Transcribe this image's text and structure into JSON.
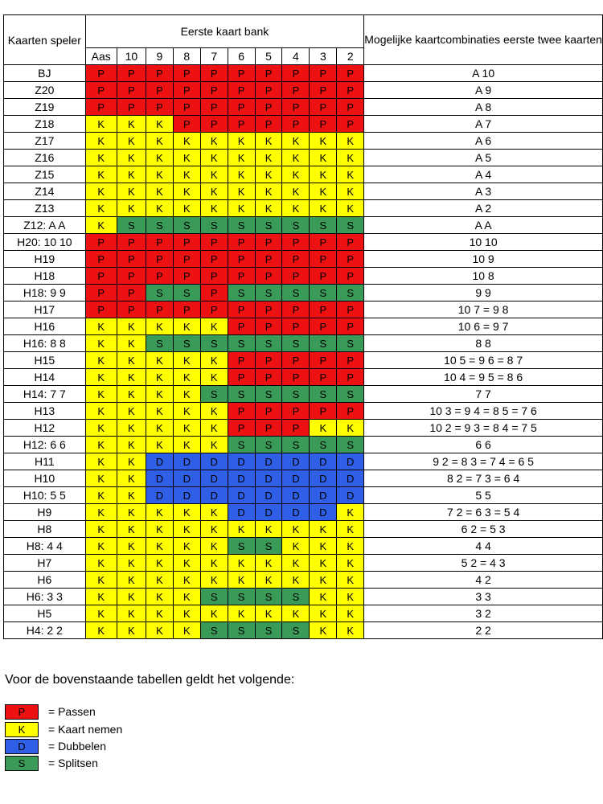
{
  "header": {
    "player_label": "Kaarten speler",
    "dealer_label": "Eerste kaart bank",
    "combos_label": "Mogelijke kaartcombinaties eerste twee kaarten",
    "dealer_cards": [
      "Aas",
      "10",
      "9",
      "8",
      "7",
      "6",
      "5",
      "4",
      "3",
      "2"
    ]
  },
  "rows": [
    {
      "label": "BJ",
      "actions": [
        "P",
        "P",
        "P",
        "P",
        "P",
        "P",
        "P",
        "P",
        "P",
        "P"
      ],
      "combos": "A 10"
    },
    {
      "label": "Z20",
      "actions": [
        "P",
        "P",
        "P",
        "P",
        "P",
        "P",
        "P",
        "P",
        "P",
        "P"
      ],
      "combos": "A 9"
    },
    {
      "label": "Z19",
      "actions": [
        "P",
        "P",
        "P",
        "P",
        "P",
        "P",
        "P",
        "P",
        "P",
        "P"
      ],
      "combos": "A 8"
    },
    {
      "label": "Z18",
      "actions": [
        "K",
        "K",
        "K",
        "P",
        "P",
        "P",
        "P",
        "P",
        "P",
        "P"
      ],
      "combos": "A 7"
    },
    {
      "label": "Z17",
      "actions": [
        "K",
        "K",
        "K",
        "K",
        "K",
        "K",
        "K",
        "K",
        "K",
        "K"
      ],
      "combos": "A 6"
    },
    {
      "label": "Z16",
      "actions": [
        "K",
        "K",
        "K",
        "K",
        "K",
        "K",
        "K",
        "K",
        "K",
        "K"
      ],
      "combos": "A 5"
    },
    {
      "label": "Z15",
      "actions": [
        "K",
        "K",
        "K",
        "K",
        "K",
        "K",
        "K",
        "K",
        "K",
        "K"
      ],
      "combos": "A 4"
    },
    {
      "label": "Z14",
      "actions": [
        "K",
        "K",
        "K",
        "K",
        "K",
        "K",
        "K",
        "K",
        "K",
        "K"
      ],
      "combos": "A 3"
    },
    {
      "label": "Z13",
      "actions": [
        "K",
        "K",
        "K",
        "K",
        "K",
        "K",
        "K",
        "K",
        "K",
        "K"
      ],
      "combos": "A 2"
    },
    {
      "label": "Z12: A A",
      "actions": [
        "K",
        "S",
        "S",
        "S",
        "S",
        "S",
        "S",
        "S",
        "S",
        "S"
      ],
      "combos": "A A"
    },
    {
      "label": "H20: 10 10",
      "actions": [
        "P",
        "P",
        "P",
        "P",
        "P",
        "P",
        "P",
        "P",
        "P",
        "P"
      ],
      "combos": "10 10"
    },
    {
      "label": "H19",
      "actions": [
        "P",
        "P",
        "P",
        "P",
        "P",
        "P",
        "P",
        "P",
        "P",
        "P"
      ],
      "combos": "10 9"
    },
    {
      "label": "H18",
      "actions": [
        "P",
        "P",
        "P",
        "P",
        "P",
        "P",
        "P",
        "P",
        "P",
        "P"
      ],
      "combos": "10 8"
    },
    {
      "label": "H18: 9 9",
      "actions": [
        "P",
        "P",
        "S",
        "S",
        "P",
        "S",
        "S",
        "S",
        "S",
        "S"
      ],
      "combos": "9 9"
    },
    {
      "label": "H17",
      "actions": [
        "P",
        "P",
        "P",
        "P",
        "P",
        "P",
        "P",
        "P",
        "P",
        "P"
      ],
      "combos": "10 7 = 9 8"
    },
    {
      "label": "H16",
      "actions": [
        "K",
        "K",
        "K",
        "K",
        "K",
        "P",
        "P",
        "P",
        "P",
        "P"
      ],
      "combos": "10 6 = 9 7"
    },
    {
      "label": "H16: 8 8",
      "actions": [
        "K",
        "K",
        "S",
        "S",
        "S",
        "S",
        "S",
        "S",
        "S",
        "S"
      ],
      "combos": "8 8"
    },
    {
      "label": "H15",
      "actions": [
        "K",
        "K",
        "K",
        "K",
        "K",
        "P",
        "P",
        "P",
        "P",
        "P"
      ],
      "combos": "10 5 = 9 6 = 8 7"
    },
    {
      "label": "H14",
      "actions": [
        "K",
        "K",
        "K",
        "K",
        "K",
        "P",
        "P",
        "P",
        "P",
        "P"
      ],
      "combos": "10 4 = 9 5 = 8 6"
    },
    {
      "label": "H14: 7 7",
      "actions": [
        "K",
        "K",
        "K",
        "K",
        "S",
        "S",
        "S",
        "S",
        "S",
        "S"
      ],
      "combos": "7 7"
    },
    {
      "label": "H13",
      "actions": [
        "K",
        "K",
        "K",
        "K",
        "K",
        "P",
        "P",
        "P",
        "P",
        "P"
      ],
      "combos": "10 3 = 9 4 = 8 5 = 7 6"
    },
    {
      "label": "H12",
      "actions": [
        "K",
        "K",
        "K",
        "K",
        "K",
        "P",
        "P",
        "P",
        "K",
        "K"
      ],
      "combos": "10 2 = 9 3 = 8 4 = 7 5"
    },
    {
      "label": "H12: 6 6",
      "actions": [
        "K",
        "K",
        "K",
        "K",
        "K",
        "S",
        "S",
        "S",
        "S",
        "S"
      ],
      "combos": "6 6"
    },
    {
      "label": "H11",
      "actions": [
        "K",
        "K",
        "D",
        "D",
        "D",
        "D",
        "D",
        "D",
        "D",
        "D"
      ],
      "combos": "9 2 = 8 3 = 7 4 = 6 5"
    },
    {
      "label": "H10",
      "actions": [
        "K",
        "K",
        "D",
        "D",
        "D",
        "D",
        "D",
        "D",
        "D",
        "D"
      ],
      "combos": "8 2 = 7 3 = 6 4"
    },
    {
      "label": "H10: 5 5",
      "actions": [
        "K",
        "K",
        "D",
        "D",
        "D",
        "D",
        "D",
        "D",
        "D",
        "D"
      ],
      "combos": "5 5"
    },
    {
      "label": "H9",
      "actions": [
        "K",
        "K",
        "K",
        "K",
        "K",
        "D",
        "D",
        "D",
        "D",
        "K"
      ],
      "combos": "7 2 = 6 3 = 5 4"
    },
    {
      "label": "H8",
      "actions": [
        "K",
        "K",
        "K",
        "K",
        "K",
        "K",
        "K",
        "K",
        "K",
        "K"
      ],
      "combos": "6 2 = 5 3"
    },
    {
      "label": "H8: 4 4",
      "actions": [
        "K",
        "K",
        "K",
        "K",
        "K",
        "S",
        "S",
        "K",
        "K",
        "K"
      ],
      "combos": "4 4"
    },
    {
      "label": "H7",
      "actions": [
        "K",
        "K",
        "K",
        "K",
        "K",
        "K",
        "K",
        "K",
        "K",
        "K"
      ],
      "combos": "5 2 = 4 3"
    },
    {
      "label": "H6",
      "actions": [
        "K",
        "K",
        "K",
        "K",
        "K",
        "K",
        "K",
        "K",
        "K",
        "K"
      ],
      "combos": "4 2"
    },
    {
      "label": "H6: 3 3",
      "actions": [
        "K",
        "K",
        "K",
        "K",
        "S",
        "S",
        "S",
        "S",
        "K",
        "K"
      ],
      "combos": "3 3"
    },
    {
      "label": "H5",
      "actions": [
        "K",
        "K",
        "K",
        "K",
        "K",
        "K",
        "K",
        "K",
        "K",
        "K"
      ],
      "combos": "3 2"
    },
    {
      "label": "H4: 2 2",
      "actions": [
        "K",
        "K",
        "K",
        "K",
        "S",
        "S",
        "S",
        "S",
        "K",
        "K"
      ],
      "combos": "2 2"
    }
  ],
  "legend": {
    "title": "Voor de bovenstaande tabellen geldt het volgende:",
    "items": [
      {
        "code": "P",
        "text": "= Passen",
        "color": "#ee1111"
      },
      {
        "code": "K",
        "text": "= Kaart nemen",
        "color": "#ffff00"
      },
      {
        "code": "D",
        "text": "= Dubbelen",
        "color": "#2e5fe6"
      },
      {
        "code": "S",
        "text": "= Splitsen",
        "color": "#3a9a57"
      }
    ]
  },
  "colors": {
    "P": "#ee1111",
    "K": "#ffff00",
    "D": "#2e5fe6",
    "S": "#3a9a57"
  }
}
